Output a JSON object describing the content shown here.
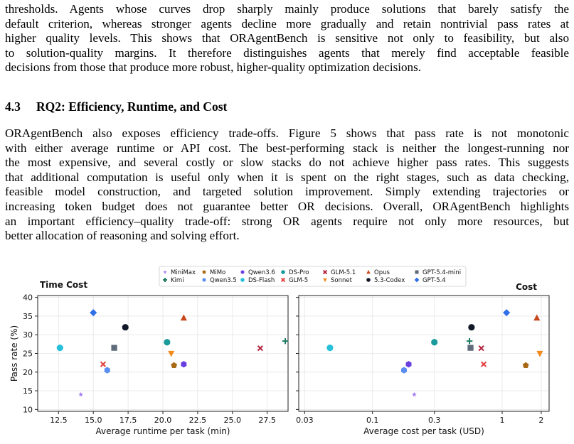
{
  "paragraph_top": {
    "lines": [
      "thresholds.  Agents whose curves drop sharply mainly produce solutions that barely satisfy the",
      "default criterion, whereas stronger agents decline more gradually and retain nontrivial pass rates at",
      "higher quality levels. This shows that ORAgentBench is sensitive not only to feasibility, but also",
      "to solution-quality margins. It therefore distinguishes agents that merely find acceptable feasible",
      "decisions from those that produce more robust, higher-quality optimization decisions."
    ]
  },
  "section": {
    "number": "4.3",
    "title": "RQ2: Efficiency, Runtime, and Cost"
  },
  "paragraph_main": {
    "lines": [
      "ORAgentBench also exposes efficiency trade-offs. Figure 5 shows that pass rate is not monotonic",
      "with either average runtime or API cost. The best-performing stack is neither the longest-running nor",
      "the most expensive, and several costly or slow stacks do not achieve higher pass rates. This suggests",
      "that additional computation is useful only when it is spent on the right stages, such as data checking,",
      "feasible model construction, and targeted solution improvement. Simply extending trajectories or",
      "increasing token budget does not guarantee better OR decisions. Overall, ORAgentBench highlights",
      "an important efficiency–quality trade-off: strong OR agents require not only more resources, but",
      "better allocation of reasoning and solving effort."
    ]
  },
  "legend": [
    {
      "name": "MiniMax",
      "color": "#a77ff0",
      "marker": "star"
    },
    {
      "name": "Kimi",
      "color": "#1e7b63",
      "marker": "plus"
    },
    {
      "name": "MiMo",
      "color": "#a86a14",
      "marker": "pentagon"
    },
    {
      "name": "Qwen3.5",
      "color": "#5b8ef0",
      "marker": "hexagon"
    },
    {
      "name": "Qwen3.6",
      "color": "#6a3fe0",
      "marker": "hexagon"
    },
    {
      "name": "DS-Flash",
      "color": "#27c0d8",
      "marker": "circle"
    },
    {
      "name": "DS-Pro",
      "color": "#1a9a9a",
      "marker": "circle"
    },
    {
      "name": "GLM-5",
      "color": "#e2403e",
      "marker": "x"
    },
    {
      "name": "GLM-5.1",
      "color": "#b3213d",
      "marker": "x"
    },
    {
      "name": "Sonnet",
      "color": "#f28a1b",
      "marker": "triangle-down"
    },
    {
      "name": "Opus",
      "color": "#c8461a",
      "marker": "triangle-up"
    },
    {
      "name": "5.3-Codex",
      "color": "#111827",
      "marker": "circle"
    },
    {
      "name": "GPT-5.4-mini",
      "color": "#5f6b7a",
      "marker": "square"
    },
    {
      "name": "GPT-5.4",
      "color": "#2f6fe8",
      "marker": "diamond"
    }
  ],
  "chart_data": [
    {
      "type": "scatter",
      "title": "Time Cost",
      "xlabel": "Average runtime per task (min)",
      "ylabel": "Pass rate (%)",
      "xlim": [
        11.0,
        29.0
      ],
      "ylim": [
        9.5,
        40.5
      ],
      "xticks": [
        "12.5",
        "15.0",
        "17.5",
        "20.0",
        "22.5",
        "25.0",
        "27.5"
      ],
      "xtick_values": [
        12.5,
        15.0,
        17.5,
        20.0,
        22.5,
        25.0,
        27.5
      ],
      "yticks": [
        "10",
        "15",
        "20",
        "25",
        "30",
        "35",
        "40"
      ],
      "ytick_values": [
        10,
        15,
        20,
        25,
        30,
        35,
        40
      ],
      "grid": true,
      "points": [
        {
          "series": "MiniMax",
          "x": 14.1,
          "y": 14.0
        },
        {
          "series": "Kimi",
          "x": 28.8,
          "y": 28.3
        },
        {
          "series": "MiMo",
          "x": 20.8,
          "y": 21.8
        },
        {
          "series": "Qwen3.5",
          "x": 16.0,
          "y": 20.5
        },
        {
          "series": "Qwen3.6",
          "x": 21.5,
          "y": 22.1
        },
        {
          "series": "DS-Flash",
          "x": 12.6,
          "y": 26.5
        },
        {
          "series": "DS-Pro",
          "x": 20.3,
          "y": 28.0
        },
        {
          "series": "GLM-5",
          "x": 15.7,
          "y": 22.1
        },
        {
          "series": "GLM-5.1",
          "x": 27.0,
          "y": 26.4
        },
        {
          "series": "Sonnet",
          "x": 20.6,
          "y": 25.0
        },
        {
          "series": "Opus",
          "x": 21.5,
          "y": 34.5
        },
        {
          "series": "5.3-Codex",
          "x": 17.3,
          "y": 32.0
        },
        {
          "series": "GPT-5.4-mini",
          "x": 16.5,
          "y": 26.5
        },
        {
          "series": "GPT-5.4",
          "x": 15.0,
          "y": 35.9
        }
      ]
    },
    {
      "type": "scatter",
      "title": "Cost",
      "xlabel": "Average cost per task (USD)",
      "ylabel": "",
      "xscale": "log",
      "xlim": [
        0.027,
        2.3
      ],
      "ylim": [
        9.5,
        40.5
      ],
      "xticks": [
        "0.03",
        "0.1",
        "0.3",
        "1",
        "2"
      ],
      "xtick_values": [
        0.03,
        0.1,
        0.3,
        1,
        2
      ],
      "grid": true,
      "points": [
        {
          "series": "MiniMax",
          "x": 0.21,
          "y": 14.0
        },
        {
          "series": "Kimi",
          "x": 0.56,
          "y": 28.3
        },
        {
          "series": "MiMo",
          "x": 1.52,
          "y": 21.8
        },
        {
          "series": "Qwen3.5",
          "x": 0.175,
          "y": 20.5
        },
        {
          "series": "Qwen3.6",
          "x": 0.19,
          "y": 22.1
        },
        {
          "series": "DS-Flash",
          "x": 0.047,
          "y": 26.5
        },
        {
          "series": "DS-Pro",
          "x": 0.3,
          "y": 28.0
        },
        {
          "series": "GLM-5",
          "x": 0.72,
          "y": 22.1
        },
        {
          "series": "GLM-5.1",
          "x": 0.69,
          "y": 26.4
        },
        {
          "series": "Sonnet",
          "x": 1.95,
          "y": 25.0
        },
        {
          "series": "Opus",
          "x": 1.85,
          "y": 34.5
        },
        {
          "series": "5.3-Codex",
          "x": 0.58,
          "y": 32.0
        },
        {
          "series": "GPT-5.4-mini",
          "x": 0.57,
          "y": 26.5
        },
        {
          "series": "GPT-5.4",
          "x": 1.08,
          "y": 35.9
        }
      ]
    }
  ]
}
